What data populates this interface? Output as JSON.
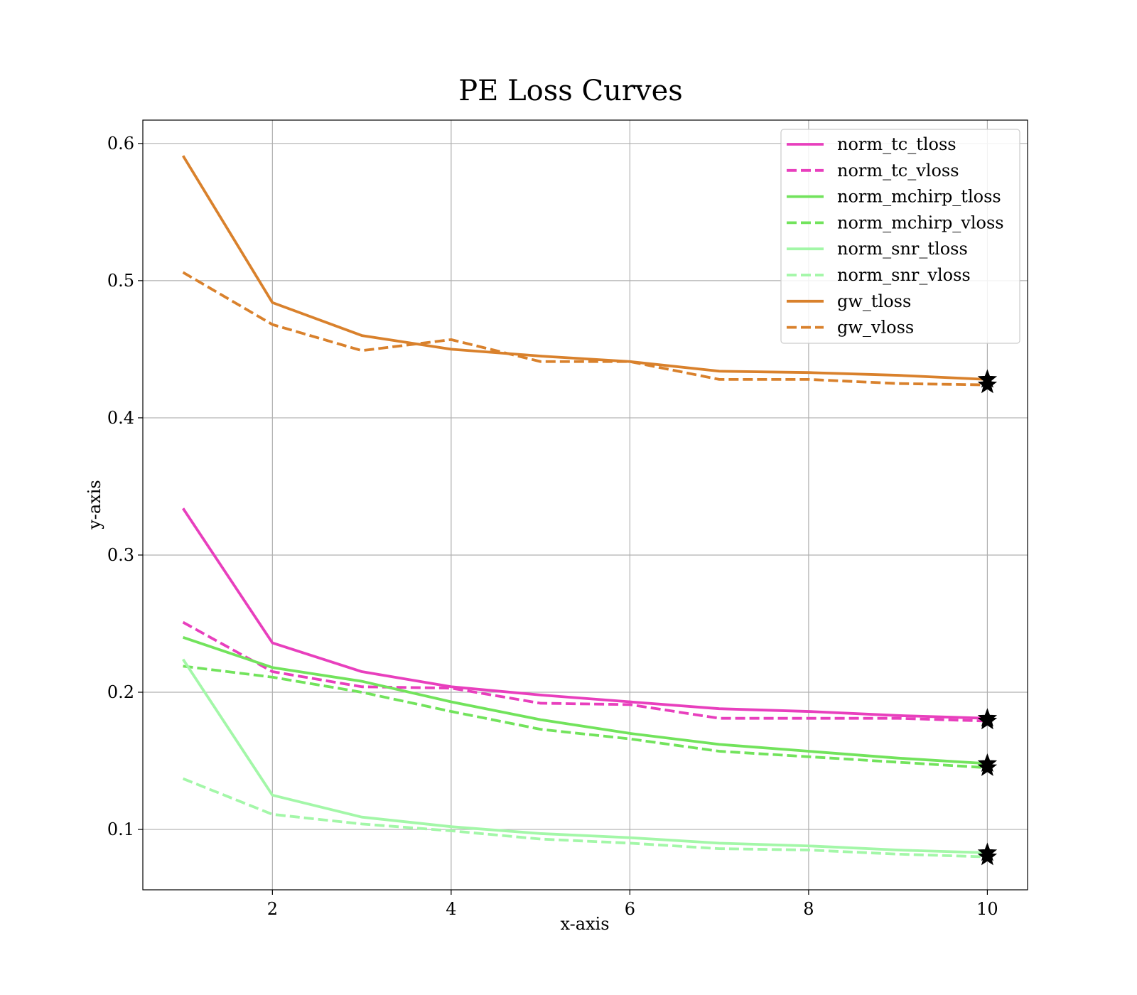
{
  "chart_data": {
    "type": "line",
    "title": "PE Loss Curves",
    "xlabel": "x-axis",
    "ylabel": "y-axis",
    "xlim": [
      0.55,
      10.45
    ],
    "ylim": [
      0.056,
      0.617
    ],
    "xticks": [
      2,
      4,
      6,
      8,
      10
    ],
    "yticks": [
      0.1,
      0.2,
      0.3,
      0.4,
      0.5,
      0.6
    ],
    "xtick_labels": [
      "2",
      "4",
      "6",
      "8",
      "10"
    ],
    "ytick_labels": [
      "0.1",
      "0.2",
      "0.3",
      "0.4",
      "0.5",
      "0.6"
    ],
    "grid": true,
    "legend_position": "top-right",
    "end_marker": "star",
    "x": [
      1,
      2,
      3,
      4,
      5,
      6,
      7,
      8,
      9,
      10
    ],
    "series": [
      {
        "name": "norm_tc_tloss",
        "color": "#e83fbd",
        "style": "solid",
        "values": [
          0.334,
          0.236,
          0.215,
          0.204,
          0.198,
          0.193,
          0.188,
          0.186,
          0.183,
          0.181
        ]
      },
      {
        "name": "norm_tc_vloss",
        "color": "#e83fbd",
        "style": "dashed",
        "values": [
          0.251,
          0.215,
          0.204,
          0.203,
          0.192,
          0.191,
          0.181,
          0.181,
          0.181,
          0.179
        ]
      },
      {
        "name": "norm_mchirp_tloss",
        "color": "#72e35c",
        "style": "solid",
        "values": [
          0.24,
          0.218,
          0.208,
          0.193,
          0.18,
          0.17,
          0.162,
          0.157,
          0.152,
          0.148
        ]
      },
      {
        "name": "norm_mchirp_vloss",
        "color": "#72e35c",
        "style": "dashed",
        "values": [
          0.219,
          0.211,
          0.2,
          0.186,
          0.173,
          0.166,
          0.157,
          0.153,
          0.149,
          0.145
        ]
      },
      {
        "name": "norm_snr_tloss",
        "color": "#a3f7a8",
        "style": "solid",
        "values": [
          0.224,
          0.125,
          0.109,
          0.102,
          0.097,
          0.094,
          0.09,
          0.088,
          0.085,
          0.083
        ]
      },
      {
        "name": "norm_snr_vloss",
        "color": "#a3f7a8",
        "style": "dashed",
        "values": [
          0.137,
          0.111,
          0.104,
          0.099,
          0.093,
          0.09,
          0.086,
          0.085,
          0.082,
          0.08
        ]
      },
      {
        "name": "gw_tloss",
        "color": "#d9812c",
        "style": "solid",
        "values": [
          0.591,
          0.484,
          0.46,
          0.45,
          0.445,
          0.441,
          0.434,
          0.433,
          0.431,
          0.428
        ]
      },
      {
        "name": "gw_vloss",
        "color": "#d9812c",
        "style": "dashed",
        "values": [
          0.506,
          0.468,
          0.449,
          0.457,
          0.441,
          0.441,
          0.428,
          0.428,
          0.425,
          0.424
        ]
      }
    ]
  }
}
